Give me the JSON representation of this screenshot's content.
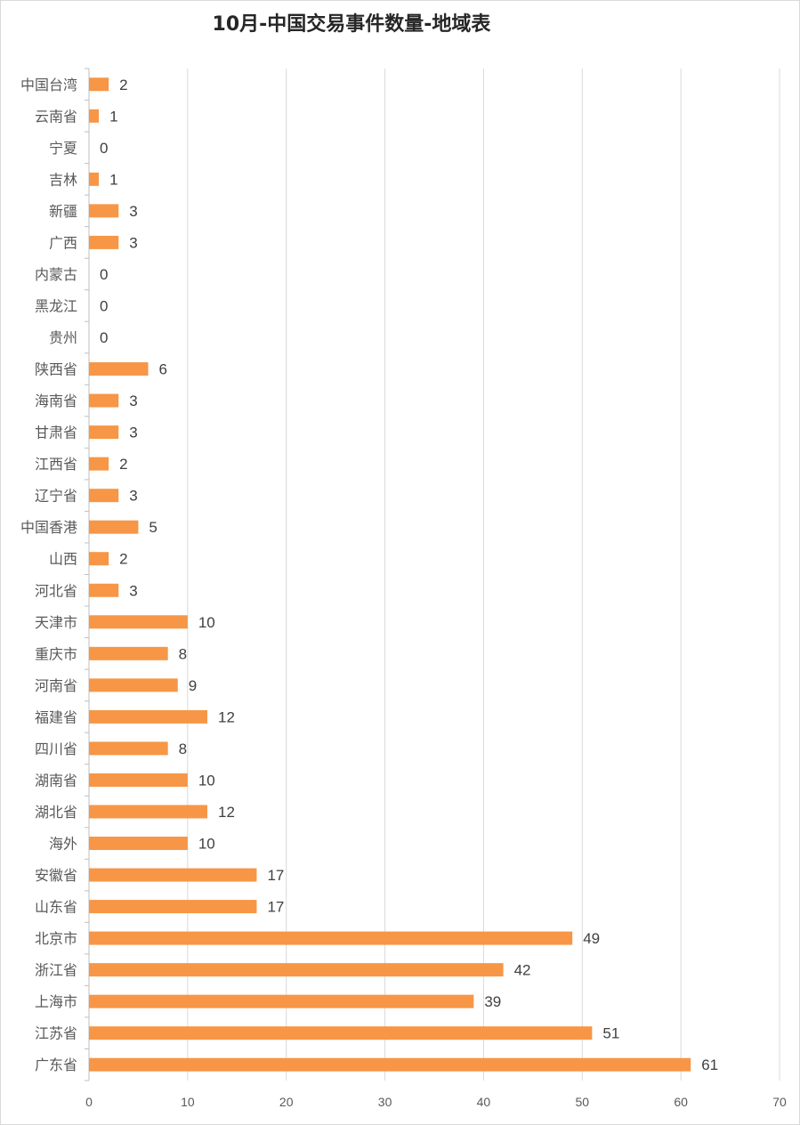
{
  "chart_data": {
    "type": "bar",
    "orientation": "horizontal",
    "title": "10月-中国交易事件数量-地域表",
    "xlabel": "",
    "ylabel": "",
    "xlim": [
      0,
      70
    ],
    "x_ticks": [
      0,
      10,
      20,
      30,
      40,
      50,
      60,
      70
    ],
    "grid": true,
    "legend": "none",
    "data_labels": true,
    "bar_color": "#F79646",
    "categories": [
      "中国台湾",
      "云南省",
      "宁夏",
      "吉林",
      "新疆",
      "广西",
      "内蒙古",
      "黑龙江",
      "贵州",
      "陕西省",
      "海南省",
      "甘肃省",
      "江西省",
      "辽宁省",
      "中国香港",
      "山西",
      "河北省",
      "天津市",
      "重庆市",
      "河南省",
      "福建省",
      "四川省",
      "湖南省",
      "湖北省",
      "海外",
      "安徽省",
      "山东省",
      "北京市",
      "浙江省",
      "上海市",
      "江苏省",
      "广东省"
    ],
    "values": [
      2,
      1,
      0,
      1,
      3,
      3,
      0,
      0,
      0,
      6,
      3,
      3,
      2,
      3,
      5,
      2,
      3,
      10,
      8,
      9,
      12,
      8,
      10,
      12,
      10,
      17,
      17,
      49,
      42,
      39,
      51,
      61
    ]
  }
}
